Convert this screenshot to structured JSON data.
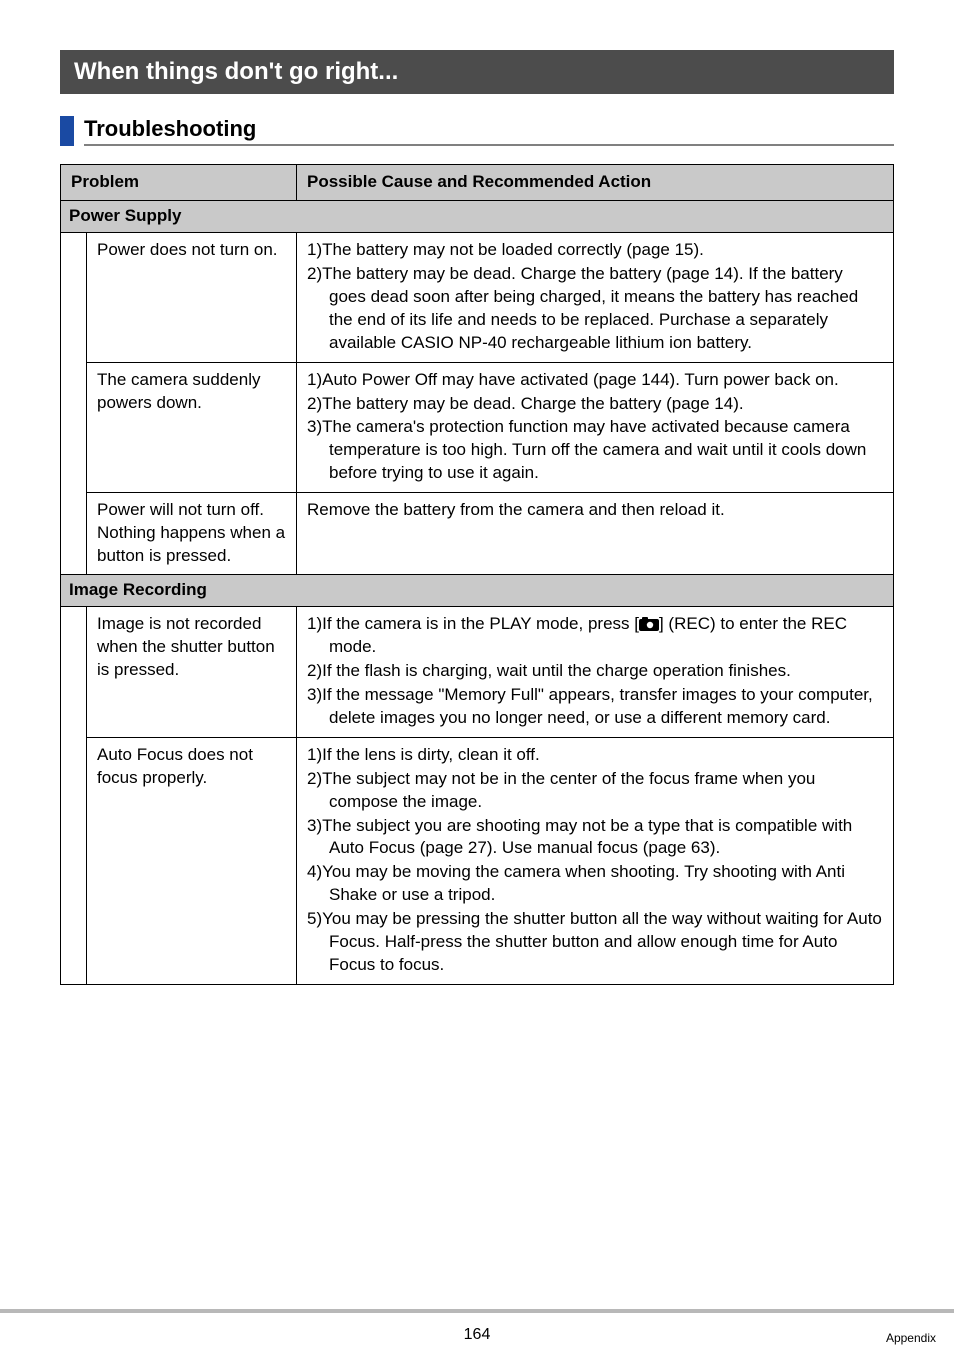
{
  "section_header": "When things don't go right...",
  "subheading": "Troubleshooting",
  "table": {
    "header_problem": "Problem",
    "header_action": "Possible Cause and Recommended Action",
    "groups": [
      {
        "category": "Power Supply",
        "rows": [
          {
            "problem": "Power does not turn on.",
            "items": [
              "1)The battery may not be loaded correctly (page 15).",
              "2)The battery may be dead. Charge the battery (page 14). If the battery goes dead soon after being charged, it means the battery has reached the end of its life and needs to be replaced. Purchase a separately available CASIO NP-40 rechargeable lithium ion battery."
            ]
          },
          {
            "problem": "The camera suddenly powers down.",
            "items": [
              "1)Auto Power Off may have activated (page 144). Turn power back on.",
              "2)The battery may be dead. Charge the battery (page 14).",
              "3)The camera's protection function may have activated because camera temperature is too high. Turn off the camera and wait until it cools down before trying to use it again."
            ]
          },
          {
            "problem": "Power will not turn off. Nothing happens when a button is pressed.",
            "items": [
              "Remove the battery from the camera and then reload it."
            ]
          }
        ]
      },
      {
        "category": "Image Recording",
        "rows": [
          {
            "problem": "Image is not recorded when the shutter button is pressed.",
            "items_html": [
              "1)If the camera is in the PLAY mode, press [<svg class=\"rec-icon\" width=\"20\" height=\"14\" viewBox=\"0 0 20 14\"><rect x=\"0\" y=\"2\" width=\"20\" height=\"12\" rx=\"2\" fill=\"#000\"/><rect x=\"3\" y=\"0\" width=\"6\" height=\"4\" rx=\"1\" fill=\"#000\"/><circle cx=\"11\" cy=\"8\" r=\"3.2\" fill=\"#fff\"/></svg>] (REC) to enter the REC mode.",
              "2)If the flash is charging, wait until the charge operation finishes.",
              "3)If the message \"Memory Full\" appears, transfer images to your computer, delete images you no longer need, or use a different memory card."
            ]
          },
          {
            "problem": "Auto Focus does not focus properly.",
            "items": [
              "1)If the lens is dirty, clean it off.",
              "2)The subject may not be in the center of the focus frame when you compose the image.",
              "3)The subject you are shooting may not be a type that is compatible with Auto Focus (page 27). Use manual focus (page 63).",
              "4)You may be moving the camera when shooting. Try shooting with Anti Shake or use a tripod.",
              "5)You may be pressing the shutter button all the way without waiting for Auto Focus. Half-press the shutter button and allow enough time for Auto Focus to focus."
            ]
          }
        ]
      }
    ]
  },
  "footer": {
    "page_number": "164",
    "section_label": "Appendix"
  },
  "colors": {
    "header_bg": "#4c4c4c",
    "accent_blue": "#1a4aa3",
    "category_bg": "#c9c9c9",
    "footer_rule": "#b8b8b8"
  }
}
